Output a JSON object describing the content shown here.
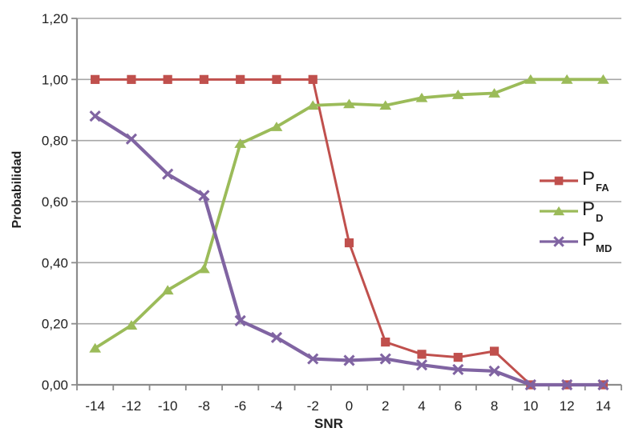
{
  "chart_data": {
    "type": "line",
    "title": "",
    "xlabel": "SNR",
    "ylabel": "Probabilidad",
    "x_categories": [
      "-14",
      "-12",
      "-10",
      "-8",
      "-6",
      "-4",
      "-2",
      "0",
      "2",
      "4",
      "6",
      "8",
      "10",
      "12",
      "14"
    ],
    "y_ticks": [
      {
        "label": "0,00",
        "value": 0
      },
      {
        "label": "0,20",
        "value": 0.2
      },
      {
        "label": "0,40",
        "value": 0.4
      },
      {
        "label": "0,60",
        "value": 0.6
      },
      {
        "label": "0,80",
        "value": 0.8
      },
      {
        "label": "1,00",
        "value": 1.0
      },
      {
        "label": "1,20",
        "value": 1.2
      }
    ],
    "ylim": [
      0,
      1.2
    ],
    "grid": "horizontal",
    "legend_position": "inside-right",
    "series": [
      {
        "name": "P_FA",
        "label_main": "P",
        "label_sub": "FA",
        "marker": "square",
        "color": "#C0504D",
        "values": [
          1.0,
          1.0,
          1.0,
          1.0,
          1.0,
          1.0,
          1.0,
          0.465,
          0.14,
          0.1,
          0.09,
          0.11,
          0.0,
          0.0,
          0.0
        ]
      },
      {
        "name": "P_D",
        "label_main": "P",
        "label_sub": "D",
        "marker": "triangle",
        "color": "#9BBB59",
        "values": [
          0.12,
          0.195,
          0.31,
          0.38,
          0.79,
          0.845,
          0.915,
          0.92,
          0.915,
          0.94,
          0.95,
          0.955,
          1.0,
          1.0,
          1.0
        ]
      },
      {
        "name": "P_MD",
        "label_main": "P",
        "label_sub": "MD",
        "marker": "x",
        "color": "#8064A2",
        "values": [
          0.88,
          0.805,
          0.69,
          0.62,
          0.21,
          0.155,
          0.085,
          0.08,
          0.085,
          0.065,
          0.05,
          0.045,
          0.0,
          0.0,
          0.0
        ]
      }
    ]
  },
  "style": {
    "background": "#FFFFFF",
    "gridline_color": "#A6A6A6",
    "axis_color": "#8C8C8C",
    "text_color": "#1F1F1F"
  }
}
